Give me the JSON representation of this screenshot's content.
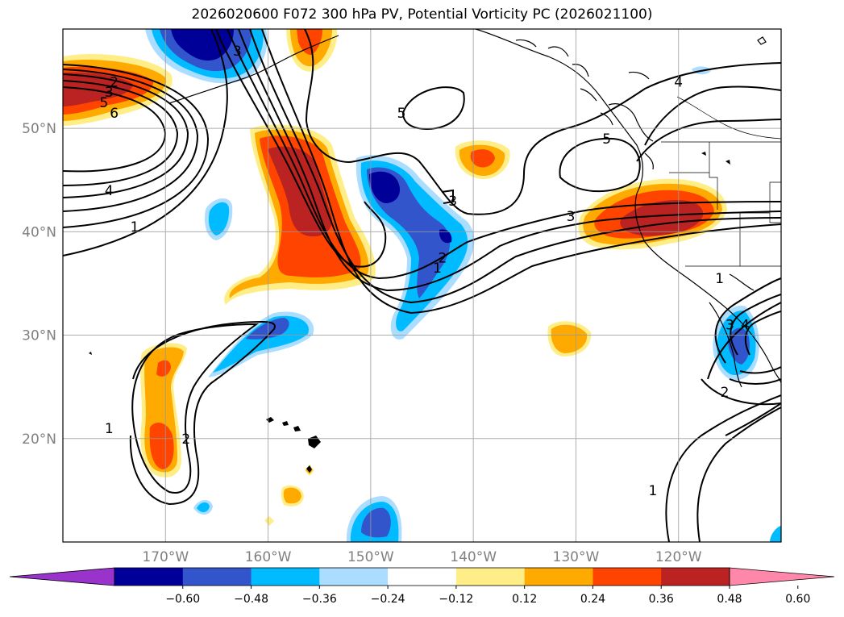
{
  "title": "2026020600 F072 300 hPa PV, Potential Vorticity PC (2026021100)",
  "lat_labels": [
    {
      "text": "50°N",
      "lat": 50
    },
    {
      "text": "40°N",
      "lat": 40
    },
    {
      "text": "30°N",
      "lat": 30
    },
    {
      "text": "20°N",
      "lat": 20
    }
  ],
  "lon_labels": [
    {
      "text": "170°W",
      "lon": -170
    },
    {
      "text": "160°W",
      "lon": -160
    },
    {
      "text": "150°W",
      "lon": -150
    },
    {
      "text": "140°W",
      "lon": -140
    },
    {
      "text": "130°W",
      "lon": -130
    },
    {
      "text": "120°W",
      "lon": -120
    }
  ],
  "colorbar": {
    "ticks": [
      "−0.60",
      "−0.48",
      "−0.36",
      "−0.24",
      "−0.12",
      "0.12",
      "0.24",
      "0.36",
      "0.48",
      "0.60"
    ],
    "colors": [
      "#9933cc",
      "#000099",
      "#3355cc",
      "#00bbff",
      "#aaddff",
      "#ffffff",
      "#ffee88",
      "#ffaa00",
      "#ff4400",
      "#bb2222",
      "#ff88aa"
    ]
  },
  "contour_labels": [
    {
      "text": "2",
      "lon": -175,
      "lat": 54.5
    },
    {
      "text": "3",
      "lon": -175.5,
      "lat": 53.5
    },
    {
      "text": "5",
      "lon": -176,
      "lat": 52.5
    },
    {
      "text": "6",
      "lon": -175,
      "lat": 51.5
    },
    {
      "text": "4",
      "lon": -175.5,
      "lat": 44
    },
    {
      "text": "1",
      "lon": -173,
      "lat": 40.5
    },
    {
      "text": "3",
      "lon": -163,
      "lat": 57.5
    },
    {
      "text": "5",
      "lon": -147,
      "lat": 51.5
    },
    {
      "text": "3",
      "lon": -142,
      "lat": 43
    },
    {
      "text": "3",
      "lon": -130.5,
      "lat": 41.5
    },
    {
      "text": "5",
      "lon": -127,
      "lat": 49
    },
    {
      "text": "4",
      "lon": -120,
      "lat": 54.5
    },
    {
      "text": "2",
      "lon": -143,
      "lat": 37.5
    },
    {
      "text": "1",
      "lon": -143.5,
      "lat": 36.5
    },
    {
      "text": "1",
      "lon": -116,
      "lat": 35.5
    },
    {
      "text": "3",
      "lon": -115,
      "lat": 31
    },
    {
      "text": "4",
      "lon": -113.5,
      "lat": 31
    },
    {
      "text": "2",
      "lon": -115.5,
      "lat": 24.5
    },
    {
      "text": "1",
      "lon": -175.5,
      "lat": 21
    },
    {
      "text": "2",
      "lon": -168,
      "lat": 20
    },
    {
      "text": "1",
      "lon": -122.5,
      "lat": 15
    }
  ]
}
